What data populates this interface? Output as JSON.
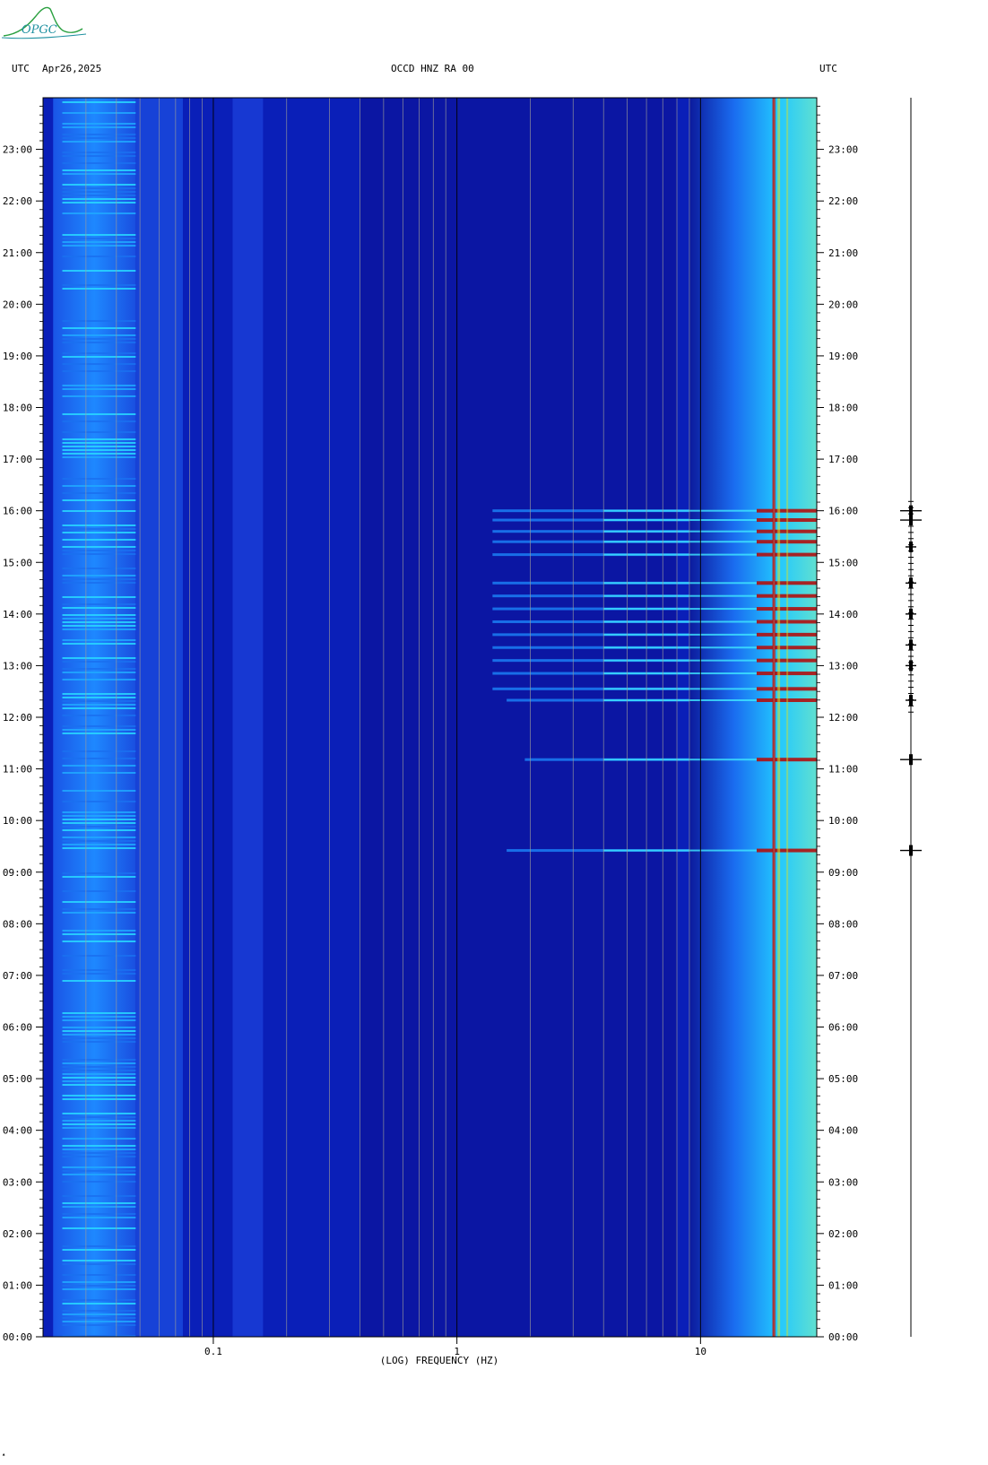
{
  "header": {
    "left_tz": "UTC",
    "date": "Apr26,2025",
    "station": "OCCD HNZ RA 00",
    "right_tz": "UTC"
  },
  "logo": {
    "text": "OPGC",
    "icon": "observatory-logo-icon"
  },
  "colors": {
    "background": "#0a1fb8",
    "deep": "#0c129a",
    "accent_red": "#b01010"
  },
  "chart_data": {
    "type": "heatmap",
    "title": "OCCD HNZ RA 00",
    "xlabel": "(LOG) FREQUENCY (HZ)",
    "ylabel": "",
    "x_scale": "log",
    "xlim": [
      0.02,
      30
    ],
    "x_ticks": [
      0.1,
      1,
      10
    ],
    "x_tick_labels": [
      "0.1",
      "1",
      "10"
    ],
    "ylim_hours": [
      0,
      24
    ],
    "y_tick_labels": [
      "00:00",
      "01:00",
      "02:00",
      "03:00",
      "04:00",
      "05:00",
      "06:00",
      "07:00",
      "08:00",
      "09:00",
      "10:00",
      "11:00",
      "12:00",
      "13:00",
      "14:00",
      "15:00",
      "16:00",
      "17:00",
      "18:00",
      "19:00",
      "20:00",
      "21:00",
      "22:00",
      "23:00"
    ],
    "colorscale": [
      "#0a0f8c",
      "#1432d2",
      "#1e78ff",
      "#22d7ff",
      "#ffe000",
      "#b01010"
    ],
    "persistent_red_line_hz": 20,
    "events_utc_hours": [
      9.42,
      11.18,
      12.33,
      12.55,
      12.85,
      13.1,
      13.35,
      13.6,
      13.85,
      14.1,
      14.35,
      14.6,
      15.15,
      15.4,
      15.6,
      15.82,
      16.0
    ],
    "trace": {
      "type": "seismogram",
      "events_utc_hours": [
        9.42,
        11.18,
        12.33,
        13.0,
        13.4,
        14.0,
        14.6,
        15.3,
        15.82,
        16.0
      ]
    }
  }
}
